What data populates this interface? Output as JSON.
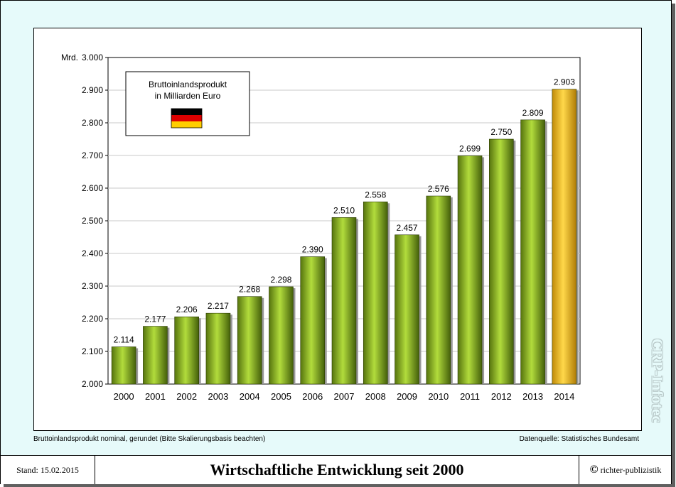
{
  "chart_data": {
    "type": "bar",
    "categories": [
      "2000",
      "2001",
      "2002",
      "2003",
      "2004",
      "2005",
      "2006",
      "2007",
      "2008",
      "2009",
      "2010",
      "2011",
      "2012",
      "2013",
      "2014"
    ],
    "values": [
      2114,
      2177,
      2206,
      2217,
      2268,
      2298,
      2390,
      2510,
      2558,
      2457,
      2576,
      2699,
      2750,
      2809,
      2903
    ],
    "value_labels": [
      "2.114",
      "2.177",
      "2.206",
      "2.217",
      "2.268",
      "2.298",
      "2.390",
      "2.510",
      "2.558",
      "2.457",
      "2.576",
      "2.699",
      "2.750",
      "2.809",
      "2.903"
    ],
    "ylim": [
      2000,
      3000
    ],
    "yticks": [
      2000,
      2100,
      2200,
      2300,
      2400,
      2500,
      2600,
      2700,
      2800,
      2900,
      3000
    ],
    "ytick_labels": [
      "2.000",
      "2.100",
      "2.200",
      "2.300",
      "2.400",
      "2.500",
      "2.600",
      "2.700",
      "2.800",
      "2.900",
      "3.000"
    ],
    "ylabel": "Mrd.",
    "grid": true,
    "bar_color": "#8fba1e",
    "highlight_color": "#f4c020",
    "highlight_index": 14,
    "legend": {
      "placement": "top-left",
      "line1": "Bruttoinlandsprodukt",
      "line2": "in Milliarden Euro",
      "flag_colors": [
        "#000000",
        "#dd0000",
        "#ffce00"
      ]
    }
  },
  "notes": {
    "left": "Bruttoinlandsprodukt nominal, gerundet (Bitte Skalierungsbasis beachten)",
    "right": "Datenquelle: Statistisches Bundesamt"
  },
  "footer": {
    "stand": "Stand: 15.02.2015",
    "title": "Wirtschaftliche Entwicklung seit 2000",
    "copyright_symbol": "©",
    "copyright": "richter-publizistik"
  },
  "watermark": "CRP-Infotec"
}
